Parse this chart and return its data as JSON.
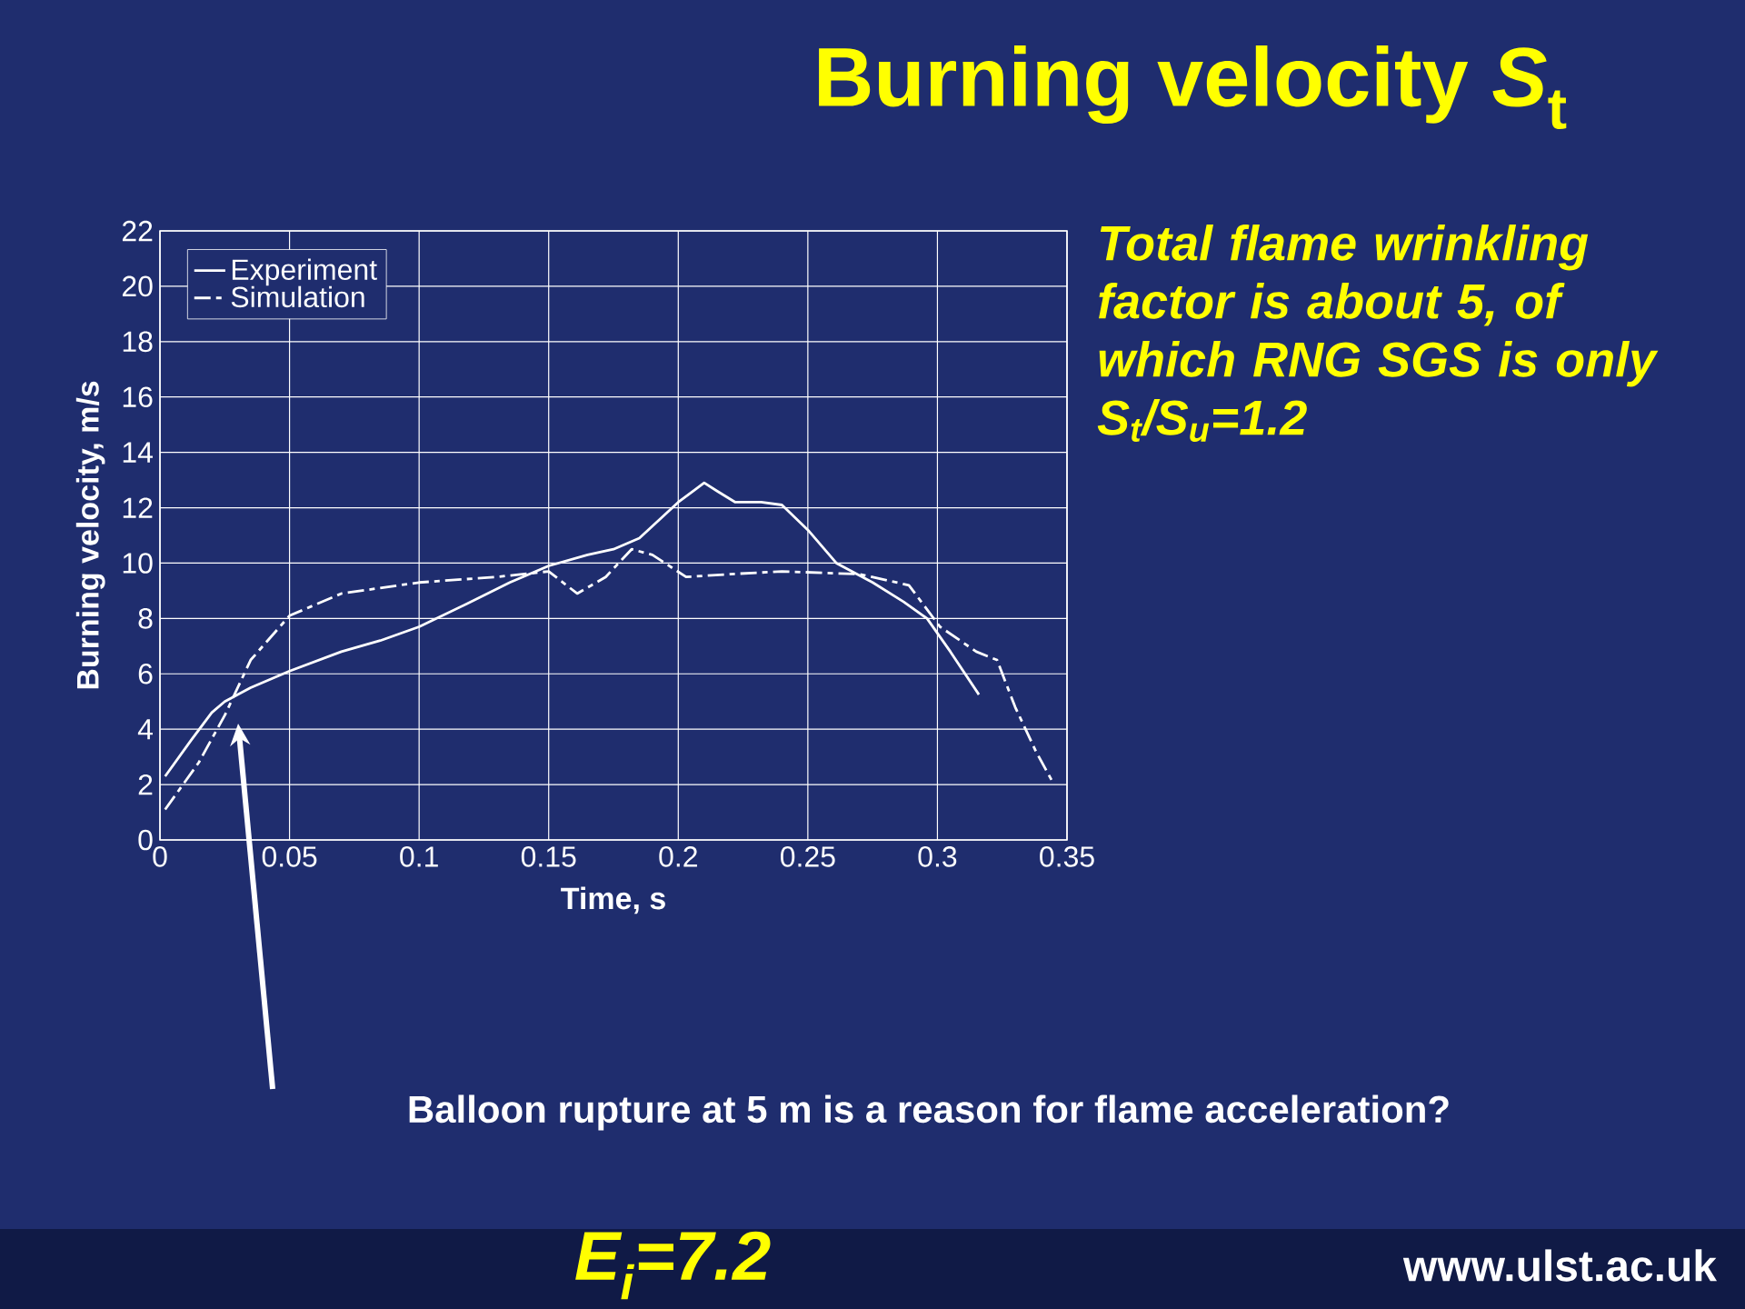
{
  "chart_data": {
    "type": "line",
    "title": "Burning velocity *S*$_{t}$",
    "xlabel": "Time, s",
    "ylabel": "Burning velocity, m/s",
    "xlim": [
      0,
      0.35
    ],
    "xticks": [
      0,
      0.05,
      0.1,
      0.15,
      0.2,
      0.25,
      0.3,
      0.35
    ],
    "ylim": [
      0,
      22
    ],
    "yticks": [
      0,
      2,
      4,
      6,
      8,
      10,
      12,
      14,
      16,
      18,
      20,
      22
    ],
    "grid": true,
    "legend": "top left",
    "series": [
      {
        "name": "Experiment",
        "color": "#ffffff",
        "line_style": "solid",
        "x": [
          0.002,
          0.012,
          0.02,
          0.025,
          0.035,
          0.05,
          0.07,
          0.085,
          0.1,
          0.12,
          0.135,
          0.15,
          0.165,
          0.175,
          0.185,
          0.2,
          0.21,
          0.215,
          0.222,
          0.232,
          0.24,
          0.25,
          0.261,
          0.275,
          0.287,
          0.296,
          0.305,
          0.316
        ],
        "values": [
          2.3,
          3.6,
          4.6,
          5.0,
          5.5,
          6.1,
          6.8,
          7.2,
          7.7,
          8.6,
          9.3,
          9.9,
          10.3,
          10.5,
          10.9,
          12.2,
          12.9,
          12.6,
          12.2,
          12.2,
          12.1,
          11.2,
          10.0,
          9.3,
          8.6,
          8.0,
          6.8,
          5.25
        ]
      },
      {
        "name": "Simulation",
        "color": "#ffffff",
        "line_style": "dashed",
        "x": [
          0.002,
          0.015,
          0.025,
          0.035,
          0.05,
          0.07,
          0.1,
          0.13,
          0.15,
          0.161,
          0.172,
          0.182,
          0.19,
          0.203,
          0.22,
          0.24,
          0.27,
          0.289,
          0.301,
          0.315,
          0.323,
          0.33,
          0.338,
          0.345
        ],
        "values": [
          1.1,
          2.8,
          4.5,
          6.5,
          8.1,
          8.9,
          9.3,
          9.5,
          9.7,
          8.9,
          9.5,
          10.5,
          10.3,
          9.5,
          9.6,
          9.7,
          9.6,
          9.2,
          7.7,
          6.8,
          6.5,
          4.8,
          3.2,
          2.0
        ]
      }
    ],
    "annotations": [
      "Total flame wrinkling factor is about 5, of which RNG SGS is only S$_{t}$/S$_{u}$=1.2",
      "Balloon rupture at 5 m is a reason for flame acceleration?",
      "E$_{i}$=7.2",
      "www.ulst.ac.uk"
    ]
  }
}
